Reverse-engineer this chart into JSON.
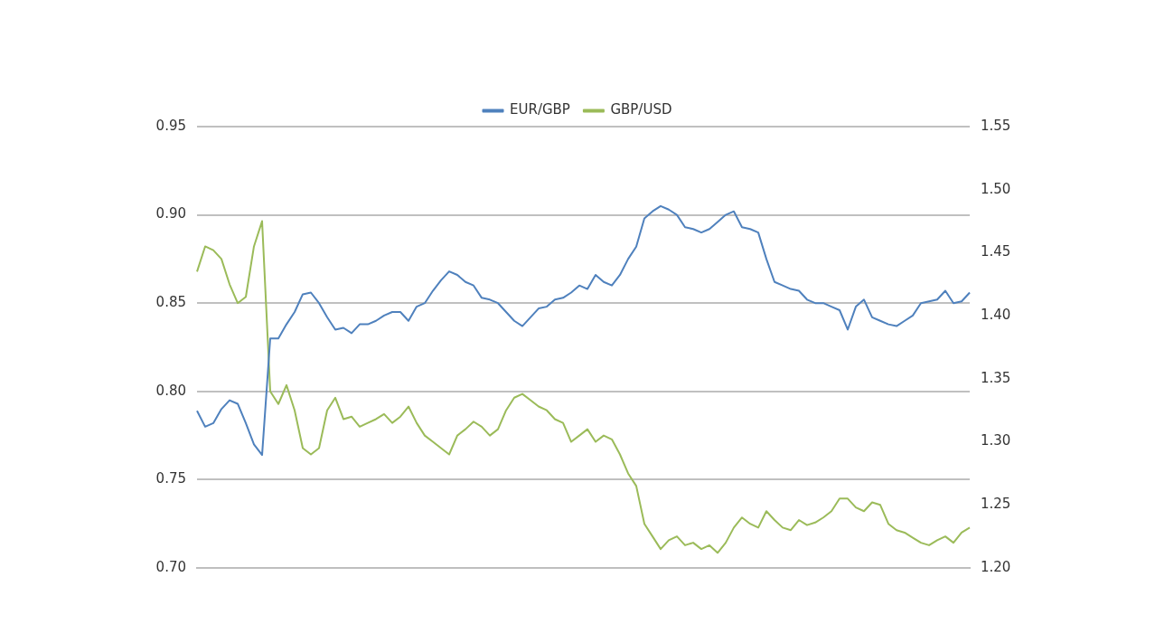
{
  "chart_data": {
    "type": "line",
    "categories": [
      null,
      null,
      null,
      null,
      null,
      null,
      null,
      null,
      null,
      null,
      null,
      null,
      null,
      null,
      null,
      null,
      null,
      null,
      null,
      null,
      null,
      null,
      null,
      null,
      null,
      null,
      null,
      null,
      null,
      null,
      null,
      null,
      null,
      null,
      null,
      null,
      null,
      null,
      null,
      null,
      null,
      null,
      null,
      null,
      null,
      null,
      null,
      null,
      null,
      null,
      null,
      null,
      null,
      null,
      null,
      null,
      null,
      null,
      null,
      null,
      null,
      null,
      null,
      null,
      null,
      null,
      null,
      null,
      null,
      null,
      null,
      null,
      null,
      null,
      null,
      null,
      null,
      null,
      null,
      null,
      null,
      null,
      null,
      null,
      null,
      null,
      null,
      null,
      null,
      null,
      null,
      null,
      null,
      null,
      null,
      null
    ],
    "series": [
      {
        "name": "EUR/GBP",
        "color": "#4f81bd",
        "values": [
          0.789,
          0.78,
          0.782,
          0.79,
          0.795,
          0.793,
          0.782,
          0.77,
          0.764,
          0.83,
          0.83,
          0.838,
          0.845,
          0.855,
          0.856,
          0.85,
          0.842,
          0.835,
          0.836,
          0.833,
          0.838,
          0.838,
          0.84,
          0.843,
          0.845,
          0.845,
          0.84,
          0.848,
          0.85,
          0.857,
          0.863,
          0.868,
          0.866,
          0.862,
          0.86,
          0.853,
          0.852,
          0.85,
          0.845,
          0.84,
          0.837,
          0.842,
          0.847,
          0.848,
          0.852,
          0.853,
          0.856,
          0.86,
          0.858,
          0.866,
          0.862,
          0.86,
          0.866,
          0.875,
          0.882,
          0.898,
          0.902,
          0.905,
          0.903,
          0.9,
          0.893,
          0.892,
          0.89,
          0.892,
          0.896,
          0.9,
          0.902,
          0.893,
          0.892,
          0.89,
          0.875,
          0.862,
          0.86,
          0.858,
          0.857,
          0.852,
          0.85,
          0.85,
          0.848,
          0.846,
          0.835,
          0.848,
          0.852,
          0.842,
          0.84,
          0.838,
          0.837,
          0.84,
          0.843,
          0.85,
          0.851,
          0.852,
          0.857,
          0.85,
          0.851,
          0.856
        ]
      },
      {
        "name": "GBP/USD",
        "color": "#9bbb59",
        "axis": "y2",
        "values": [
          1.435,
          1.455,
          1.452,
          1.445,
          1.425,
          1.41,
          1.415,
          1.455,
          1.475,
          1.34,
          1.33,
          1.345,
          1.325,
          1.295,
          1.29,
          1.295,
          1.325,
          1.335,
          1.318,
          1.32,
          1.312,
          1.315,
          1.318,
          1.322,
          1.315,
          1.32,
          1.328,
          1.315,
          1.305,
          1.3,
          1.295,
          1.29,
          1.305,
          1.31,
          1.316,
          1.312,
          1.305,
          1.31,
          1.325,
          1.335,
          1.338,
          1.333,
          1.328,
          1.325,
          1.318,
          1.315,
          1.3,
          1.305,
          1.31,
          1.3,
          1.305,
          1.302,
          1.29,
          1.275,
          1.265,
          1.235,
          1.225,
          1.215,
          1.222,
          1.225,
          1.218,
          1.22,
          1.215,
          1.218,
          1.212,
          1.22,
          1.232,
          1.24,
          1.235,
          1.232,
          1.245,
          1.238,
          1.232,
          1.23,
          1.238,
          1.234,
          1.236,
          1.24,
          1.245,
          1.255,
          1.255,
          1.248,
          1.245,
          1.252,
          1.25,
          1.235,
          1.23,
          1.228,
          1.224,
          1.22,
          1.218,
          1.222,
          1.225,
          1.22,
          1.228,
          1.232
        ]
      }
    ],
    "ylim": [
      0.7,
      0.95
    ],
    "yticks": [
      {
        "value": 0.7,
        "label": "0.70"
      },
      {
        "value": 0.75,
        "label": "0.75"
      },
      {
        "value": 0.8,
        "label": "0.80"
      },
      {
        "value": 0.85,
        "label": "0.85"
      },
      {
        "value": 0.9,
        "label": "0.90"
      },
      {
        "value": 0.95,
        "label": "0.95"
      }
    ],
    "y2lim": [
      1.2,
      1.55
    ],
    "y2ticks": [
      {
        "value": 1.2,
        "label": "1.20"
      },
      {
        "value": 1.25,
        "label": "1.25"
      },
      {
        "value": 1.3,
        "label": "1.30"
      },
      {
        "value": 1.35,
        "label": "1.35"
      },
      {
        "value": 1.4,
        "label": "1.40"
      },
      {
        "value": 1.45,
        "label": "1.45"
      },
      {
        "value": 1.5,
        "label": "1.50"
      },
      {
        "value": 1.55,
        "label": "1.55"
      }
    ],
    "grid": "y",
    "legend": "top",
    "marker": "none",
    "line_style": "solid"
  }
}
